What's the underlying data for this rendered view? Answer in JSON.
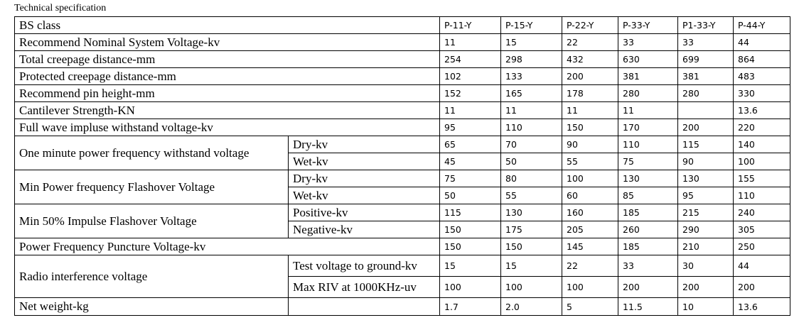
{
  "title": "Technical specification",
  "columns": [
    "P-11-Y",
    "P-15-Y",
    "P-22-Y",
    "P-33-Y",
    "P1-33-Y",
    "P-44-Y"
  ],
  "header_label": "BS class",
  "rows": [
    {
      "label": "Recommend Nominal System Voltage-kv",
      "values": [
        "11",
        "15",
        "22",
        "33",
        "33",
        "44"
      ]
    },
    {
      "label": "Total creepage distance-mm",
      "values": [
        "254",
        "298",
        "432",
        "630",
        "699",
        "864"
      ]
    },
    {
      "label": "Protected creepage distance-mm",
      "values": [
        "102",
        "133",
        "200",
        "381",
        "381",
        "483"
      ]
    },
    {
      "label": "Recommend pin height-mm",
      "values": [
        "152",
        "165",
        "178",
        "280",
        "280",
        "330"
      ]
    },
    {
      "label": "Cantilever Strength-KN",
      "values": [
        "11",
        "11",
        "11",
        "11",
        "",
        "13.6"
      ]
    },
    {
      "label": "Full wave impluse withstand voltage-kv",
      "values": [
        "95",
        "110",
        "150",
        "170",
        "200",
        "220"
      ]
    },
    {
      "label": "One minute power frequency withstand voltage",
      "sub": [
        {
          "label": "Dry-kv",
          "values": [
            "65",
            "70",
            "90",
            "110",
            "115",
            "140"
          ]
        },
        {
          "label": "Wet-kv",
          "values": [
            "45",
            "50",
            "55",
            "75",
            "90",
            "100"
          ]
        }
      ]
    },
    {
      "label": "Min Power frequency Flashover Voltage",
      "sub": [
        {
          "label": "Dry-kv",
          "values": [
            "75",
            "80",
            "100",
            "130",
            "130",
            "155"
          ]
        },
        {
          "label": "Wet-kv",
          "values": [
            "50",
            "55",
            "60",
            "85",
            "95",
            "110"
          ]
        }
      ]
    },
    {
      "label": "Min 50% Impulse Flashover Voltage",
      "sub": [
        {
          "label": "Positive-kv",
          "values": [
            "115",
            "130",
            "160",
            "185",
            "215",
            "240"
          ]
        },
        {
          "label": "Negative-kv",
          "values": [
            "150",
            "175",
            "205",
            "260",
            "290",
            "305"
          ]
        }
      ]
    },
    {
      "label": "Power Frequency Puncture Voltage-kv",
      "values": [
        "150",
        "150",
        "145",
        "185",
        "210",
        "250"
      ]
    },
    {
      "label": "Radio interference voltage",
      "sub": [
        {
          "label": "Test voltage to ground-kv",
          "values": [
            "15",
            "15",
            "22",
            "33",
            "30",
            "44"
          ]
        },
        {
          "label": "Max RIV at 1000KHz-uv",
          "values": [
            "100",
            "100",
            "100",
            "200",
            "200",
            "200"
          ]
        }
      ]
    },
    {
      "label": "Net weight-kg",
      "values": [
        "1.7",
        "2.0",
        "5",
        "11.5",
        "10",
        "13.6"
      ]
    }
  ]
}
